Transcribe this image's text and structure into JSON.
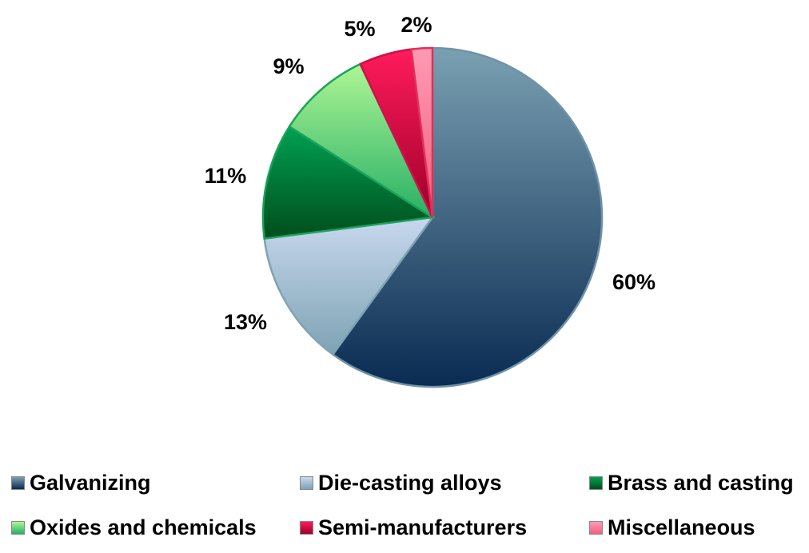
{
  "chart_data": {
    "type": "pie",
    "title": "",
    "categories": [
      "Galvanizing",
      "Die-casting alloys",
      "Brass and casting",
      "Oxides and chemicals",
      "Semi-manufacturers",
      "Miscellaneous"
    ],
    "values": [
      60,
      13,
      11,
      9,
      5,
      2
    ],
    "labels": [
      "60%",
      "13%",
      "11%",
      "9%",
      "5%",
      "2%"
    ],
    "colors": [
      [
        "#7aa0b2",
        "#0a2b52"
      ],
      [
        "#c8d8ee",
        "#7ea3b4"
      ],
      [
        "#00a152",
        "#004d1c"
      ],
      [
        "#adf594",
        "#27b066"
      ],
      [
        "#ff1b5c",
        "#9e0029"
      ],
      [
        "#ff9ab4",
        "#f0607e"
      ]
    ],
    "legend_placement": "bottom"
  }
}
